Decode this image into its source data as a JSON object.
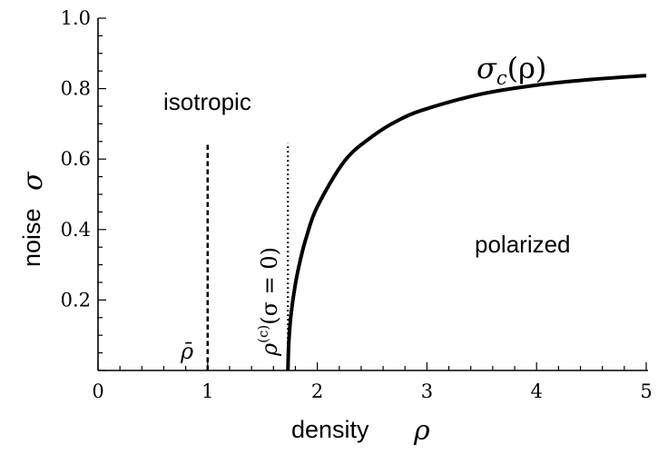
{
  "chart_data": {
    "type": "line",
    "xlabel": "density",
    "xlabel_symbol": "ρ",
    "ylabel": "noise",
    "ylabel_symbol": "σ",
    "xlim": [
      0,
      5
    ],
    "ylim": [
      0,
      1.0
    ],
    "x_ticks": [
      "0",
      "1",
      "2",
      "3",
      "4",
      "5"
    ],
    "y_ticks": [
      "0.2",
      "0.4",
      "0.6",
      "0.8",
      "1.0"
    ],
    "grid": false,
    "series": [
      {
        "name": "σc(ρ)",
        "style": "solid",
        "x": [
          1.732,
          1.74,
          1.76,
          1.8,
          1.85,
          1.9,
          2.0,
          2.25,
          2.5,
          2.75,
          3.0,
          3.5,
          4.0,
          4.5,
          5.0
        ],
        "y": [
          0.0,
          0.08,
          0.158,
          0.245,
          0.32,
          0.378,
          0.465,
          0.595,
          0.664,
          0.712,
          0.743,
          0.785,
          0.81,
          0.826,
          0.837
        ]
      }
    ],
    "vertical_lines": [
      {
        "x": 1.0,
        "y_max": 0.645,
        "style": "dashed",
        "label": "ρ̄"
      },
      {
        "x": 1.732,
        "y_max": 0.645,
        "style": "dotted",
        "label": "ρ(c)(σ = 0)"
      }
    ],
    "annotations": {
      "curve_label_main": "σ",
      "curve_label_sub": "c",
      "curve_label_args": "(ρ)",
      "isotropic": "isotropic",
      "polarized": "polarized",
      "rho_bar": "ρ̄",
      "rho_c_main": "ρ",
      "rho_c_sup": "(c)",
      "rho_c_args": "(σ = 0)"
    }
  }
}
